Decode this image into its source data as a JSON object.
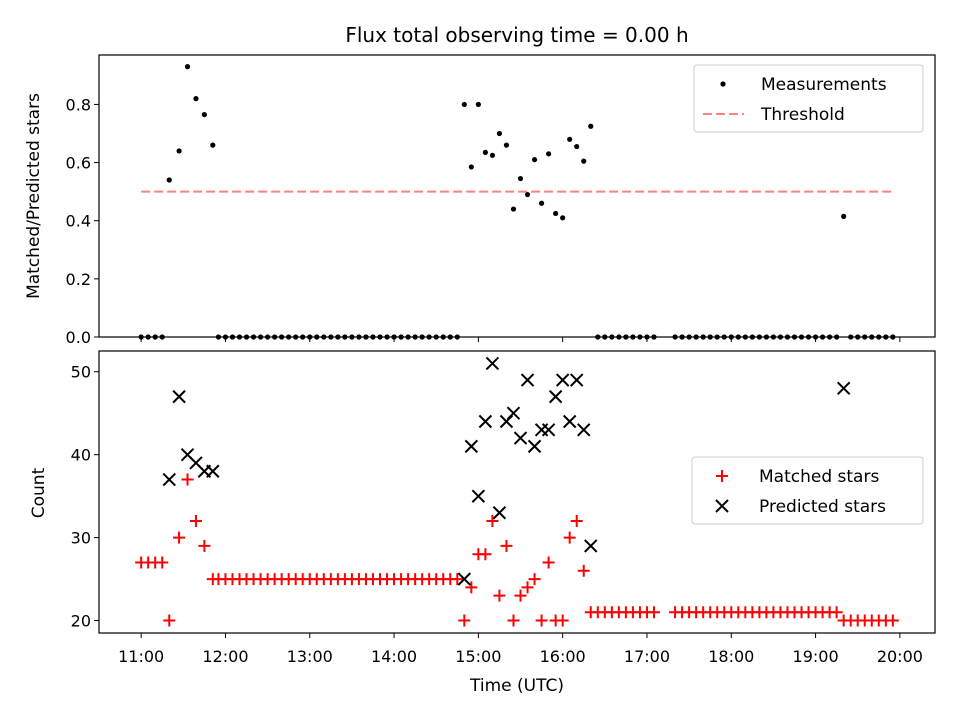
{
  "figure": {
    "title": "Flux total observing time = 0.00 h"
  },
  "chart_data": [
    {
      "type": "scatter",
      "ylabel": "Matched/Predicted stars",
      "xlim": [
        "10:30",
        "20:25"
      ],
      "ylim": [
        0,
        0.97
      ],
      "yticks": [
        "0.0",
        "0.2",
        "0.4",
        "0.6",
        "0.8"
      ],
      "grid": false,
      "legend": {
        "placement": "top-right",
        "entries": [
          "Measurements",
          "Threshold"
        ]
      },
      "threshold": {
        "value": 0.5,
        "x_start": "11:00",
        "x_end": "19:55",
        "color": "#ff8080"
      },
      "series": [
        {
          "name": "Measurements",
          "marker": "dot",
          "color": "#000000",
          "points": [
            [
              "11:00",
              0.0
            ],
            [
              "11:05",
              0.0
            ],
            [
              "11:10",
              0.0
            ],
            [
              "11:15",
              0.0
            ],
            [
              "11:20",
              0.54
            ],
            [
              "11:27",
              0.64
            ],
            [
              "11:33",
              0.93
            ],
            [
              "11:39",
              0.82
            ],
            [
              "11:45",
              0.765
            ],
            [
              "11:51",
              0.66
            ],
            [
              "11:55",
              0.0
            ],
            [
              "12:00",
              0.0
            ],
            [
              "12:05",
              0.0
            ],
            [
              "12:10",
              0.0
            ],
            [
              "12:15",
              0.0
            ],
            [
              "12:20",
              0.0
            ],
            [
              "12:25",
              0.0
            ],
            [
              "12:30",
              0.0
            ],
            [
              "12:35",
              0.0
            ],
            [
              "12:40",
              0.0
            ],
            [
              "12:45",
              0.0
            ],
            [
              "12:50",
              0.0
            ],
            [
              "12:55",
              0.0
            ],
            [
              "13:00",
              0.0
            ],
            [
              "13:05",
              0.0
            ],
            [
              "13:10",
              0.0
            ],
            [
              "13:15",
              0.0
            ],
            [
              "13:20",
              0.0
            ],
            [
              "13:25",
              0.0
            ],
            [
              "13:30",
              0.0
            ],
            [
              "13:35",
              0.0
            ],
            [
              "13:40",
              0.0
            ],
            [
              "13:45",
              0.0
            ],
            [
              "13:50",
              0.0
            ],
            [
              "13:55",
              0.0
            ],
            [
              "14:00",
              0.0
            ],
            [
              "14:05",
              0.0
            ],
            [
              "14:10",
              0.0
            ],
            [
              "14:15",
              0.0
            ],
            [
              "14:20",
              0.0
            ],
            [
              "14:25",
              0.0
            ],
            [
              "14:30",
              0.0
            ],
            [
              "14:35",
              0.0
            ],
            [
              "14:40",
              0.0
            ],
            [
              "14:45",
              0.0
            ],
            [
              "14:50",
              0.8
            ],
            [
              "14:55",
              0.585
            ],
            [
              "15:00",
              0.8
            ],
            [
              "15:05",
              0.635
            ],
            [
              "15:10",
              0.625
            ],
            [
              "15:15",
              0.7
            ],
            [
              "15:20",
              0.66
            ],
            [
              "15:25",
              0.44
            ],
            [
              "15:30",
              0.545
            ],
            [
              "15:35",
              0.49
            ],
            [
              "15:40",
              0.61
            ],
            [
              "15:45",
              0.46
            ],
            [
              "15:50",
              0.63
            ],
            [
              "15:55",
              0.425
            ],
            [
              "16:00",
              0.41
            ],
            [
              "16:05",
              0.68
            ],
            [
              "16:10",
              0.655
            ],
            [
              "16:15",
              0.605
            ],
            [
              "16:20",
              0.725
            ],
            [
              "16:25",
              0.0
            ],
            [
              "16:30",
              0.0
            ],
            [
              "16:35",
              0.0
            ],
            [
              "16:40",
              0.0
            ],
            [
              "16:45",
              0.0
            ],
            [
              "16:50",
              0.0
            ],
            [
              "16:55",
              0.0
            ],
            [
              "17:00",
              0.0
            ],
            [
              "17:05",
              0.0
            ],
            [
              "17:20",
              0.0
            ],
            [
              "17:25",
              0.0
            ],
            [
              "17:30",
              0.0
            ],
            [
              "17:35",
              0.0
            ],
            [
              "17:40",
              0.0
            ],
            [
              "17:45",
              0.0
            ],
            [
              "17:50",
              0.0
            ],
            [
              "17:55",
              0.0
            ],
            [
              "18:00",
              0.0
            ],
            [
              "18:05",
              0.0
            ],
            [
              "18:10",
              0.0
            ],
            [
              "18:15",
              0.0
            ],
            [
              "18:20",
              0.0
            ],
            [
              "18:25",
              0.0
            ],
            [
              "18:30",
              0.0
            ],
            [
              "18:35",
              0.0
            ],
            [
              "18:40",
              0.0
            ],
            [
              "18:45",
              0.0
            ],
            [
              "18:50",
              0.0
            ],
            [
              "18:55",
              0.0
            ],
            [
              "19:00",
              0.0
            ],
            [
              "19:05",
              0.0
            ],
            [
              "19:10",
              0.0
            ],
            [
              "19:15",
              0.0
            ],
            [
              "19:20",
              0.415
            ],
            [
              "19:25",
              0.0
            ],
            [
              "19:30",
              0.0
            ],
            [
              "19:35",
              0.0
            ],
            [
              "19:40",
              0.0
            ],
            [
              "19:45",
              0.0
            ],
            [
              "19:50",
              0.0
            ],
            [
              "19:55",
              0.0
            ]
          ]
        }
      ]
    },
    {
      "type": "scatter",
      "xlabel": "Time (UTC)",
      "ylabel": "Count",
      "xlim": [
        "10:30",
        "20:25"
      ],
      "ylim": [
        18.5,
        52.5
      ],
      "xticks": [
        "11:00",
        "12:00",
        "13:00",
        "14:00",
        "15:00",
        "16:00",
        "17:00",
        "18:00",
        "19:00",
        "20:00"
      ],
      "yticks": [
        "20",
        "30",
        "40",
        "50"
      ],
      "grid": false,
      "legend": {
        "placement": "center-right",
        "entries": [
          "Matched stars",
          "Predicted stars"
        ]
      },
      "series": [
        {
          "name": "Matched stars",
          "marker": "plus",
          "color": "#ff0000",
          "points": [
            [
              "11:00",
              27
            ],
            [
              "11:05",
              27
            ],
            [
              "11:10",
              27
            ],
            [
              "11:15",
              27
            ],
            [
              "11:20",
              20
            ],
            [
              "11:27",
              30
            ],
            [
              "11:33",
              37
            ],
            [
              "11:39",
              32
            ],
            [
              "11:45",
              29
            ],
            [
              "11:51",
              25
            ],
            [
              "11:55",
              25
            ],
            [
              "12:00",
              25
            ],
            [
              "12:05",
              25
            ],
            [
              "12:10",
              25
            ],
            [
              "12:15",
              25
            ],
            [
              "12:20",
              25
            ],
            [
              "12:25",
              25
            ],
            [
              "12:30",
              25
            ],
            [
              "12:35",
              25
            ],
            [
              "12:40",
              25
            ],
            [
              "12:45",
              25
            ],
            [
              "12:50",
              25
            ],
            [
              "12:55",
              25
            ],
            [
              "13:00",
              25
            ],
            [
              "13:05",
              25
            ],
            [
              "13:10",
              25
            ],
            [
              "13:15",
              25
            ],
            [
              "13:20",
              25
            ],
            [
              "13:25",
              25
            ],
            [
              "13:30",
              25
            ],
            [
              "13:35",
              25
            ],
            [
              "13:40",
              25
            ],
            [
              "13:45",
              25
            ],
            [
              "13:50",
              25
            ],
            [
              "13:55",
              25
            ],
            [
              "14:00",
              25
            ],
            [
              "14:05",
              25
            ],
            [
              "14:10",
              25
            ],
            [
              "14:15",
              25
            ],
            [
              "14:20",
              25
            ],
            [
              "14:25",
              25
            ],
            [
              "14:30",
              25
            ],
            [
              "14:35",
              25
            ],
            [
              "14:40",
              25
            ],
            [
              "14:45",
              25
            ],
            [
              "14:50",
              20
            ],
            [
              "14:55",
              24
            ],
            [
              "15:00",
              28
            ],
            [
              "15:05",
              28
            ],
            [
              "15:10",
              32
            ],
            [
              "15:15",
              23
            ],
            [
              "15:20",
              29
            ],
            [
              "15:25",
              20
            ],
            [
              "15:30",
              23
            ],
            [
              "15:35",
              24
            ],
            [
              "15:40",
              25
            ],
            [
              "15:45",
              20
            ],
            [
              "15:50",
              27
            ],
            [
              "15:55",
              20
            ],
            [
              "16:00",
              20
            ],
            [
              "16:05",
              30
            ],
            [
              "16:10",
              32
            ],
            [
              "16:15",
              26
            ],
            [
              "16:20",
              21
            ],
            [
              "16:25",
              21
            ],
            [
              "16:30",
              21
            ],
            [
              "16:35",
              21
            ],
            [
              "16:40",
              21
            ],
            [
              "16:45",
              21
            ],
            [
              "16:50",
              21
            ],
            [
              "16:55",
              21
            ],
            [
              "17:00",
              21
            ],
            [
              "17:05",
              21
            ],
            [
              "17:20",
              21
            ],
            [
              "17:25",
              21
            ],
            [
              "17:30",
              21
            ],
            [
              "17:35",
              21
            ],
            [
              "17:40",
              21
            ],
            [
              "17:45",
              21
            ],
            [
              "17:50",
              21
            ],
            [
              "17:55",
              21
            ],
            [
              "18:00",
              21
            ],
            [
              "18:05",
              21
            ],
            [
              "18:10",
              21
            ],
            [
              "18:15",
              21
            ],
            [
              "18:20",
              21
            ],
            [
              "18:25",
              21
            ],
            [
              "18:30",
              21
            ],
            [
              "18:35",
              21
            ],
            [
              "18:40",
              21
            ],
            [
              "18:45",
              21
            ],
            [
              "18:50",
              21
            ],
            [
              "18:55",
              21
            ],
            [
              "19:00",
              21
            ],
            [
              "19:05",
              21
            ],
            [
              "19:10",
              21
            ],
            [
              "19:15",
              21
            ],
            [
              "19:20",
              20
            ],
            [
              "19:25",
              20
            ],
            [
              "19:30",
              20
            ],
            [
              "19:35",
              20
            ],
            [
              "19:40",
              20
            ],
            [
              "19:45",
              20
            ],
            [
              "19:50",
              20
            ],
            [
              "19:55",
              20
            ]
          ]
        },
        {
          "name": "Predicted stars",
          "marker": "x",
          "color": "#000000",
          "points": [
            [
              "11:20",
              37
            ],
            [
              "11:27",
              47
            ],
            [
              "11:33",
              40
            ],
            [
              "11:39",
              39
            ],
            [
              "11:45",
              38
            ],
            [
              "11:51",
              38
            ],
            [
              "14:50",
              25
            ],
            [
              "14:55",
              41
            ],
            [
              "15:00",
              35
            ],
            [
              "15:05",
              44
            ],
            [
              "15:10",
              51
            ],
            [
              "15:15",
              33
            ],
            [
              "15:20",
              44
            ],
            [
              "15:25",
              45
            ],
            [
              "15:30",
              42
            ],
            [
              "15:35",
              49
            ],
            [
              "15:40",
              41
            ],
            [
              "15:45",
              43
            ],
            [
              "15:50",
              43
            ],
            [
              "15:55",
              47
            ],
            [
              "16:00",
              49
            ],
            [
              "16:05",
              44
            ],
            [
              "16:10",
              49
            ],
            [
              "16:15",
              43
            ],
            [
              "16:20",
              29
            ],
            [
              "19:20",
              48
            ]
          ]
        }
      ]
    }
  ]
}
